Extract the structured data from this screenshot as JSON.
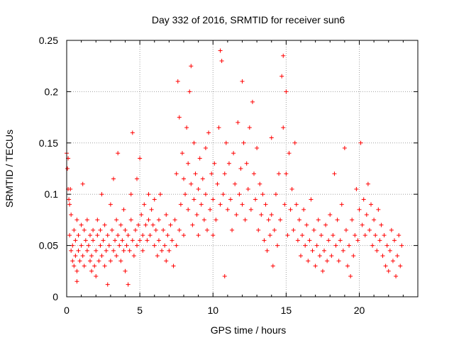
{
  "chart_data": {
    "type": "scatter",
    "title": "Day 332 of 2016, SRMTID for receiver sun6",
    "xlabel": "GPS time / hours",
    "ylabel": "SRMTID / TECUs",
    "xlim": [
      0,
      24
    ],
    "ylim": [
      0,
      0.25
    ],
    "xticks": [
      0,
      5,
      10,
      15,
      20
    ],
    "xtick_labels": [
      "0",
      "5",
      "10",
      "15",
      "20"
    ],
    "yticks": [
      0,
      0.05,
      0.1,
      0.15,
      0.2,
      0.25
    ],
    "ytick_labels": [
      "0",
      "0.05",
      "0.1",
      "0.15",
      "0.2",
      "0.25"
    ],
    "grid": true,
    "marker": "+",
    "series": [
      {
        "name": "SRMTID",
        "color": "#ff0000",
        "points": [
          [
            0.0,
            0.14
          ],
          [
            0.05,
            0.125
          ],
          [
            0.1,
            0.135
          ],
          [
            0.1,
            0.105
          ],
          [
            0.15,
            0.095
          ],
          [
            0.2,
            0.09
          ],
          [
            0.25,
            0.105
          ],
          [
            0.3,
            0.08
          ],
          [
            0.2,
            0.06
          ],
          [
            0.3,
            0.045
          ],
          [
            0.4,
            0.05
          ],
          [
            0.4,
            0.035
          ],
          [
            0.5,
            0.065
          ],
          [
            0.5,
            0.03
          ],
          [
            0.6,
            0.055
          ],
          [
            0.6,
            0.04
          ],
          [
            0.7,
            0.075
          ],
          [
            0.7,
            0.025
          ],
          [
            0.8,
            0.06
          ],
          [
            0.8,
            0.045
          ],
          [
            0.9,
            0.035
          ],
          [
            0.7,
            0.015
          ],
          [
            1.0,
            0.07
          ],
          [
            1.0,
            0.05
          ],
          [
            1.1,
            0.11
          ],
          [
            1.1,
            0.04
          ],
          [
            1.2,
            0.065
          ],
          [
            1.2,
            0.03
          ],
          [
            1.3,
            0.055
          ],
          [
            1.4,
            0.045
          ],
          [
            1.4,
            0.075
          ],
          [
            1.5,
            0.05
          ],
          [
            1.6,
            0.035
          ],
          [
            1.6,
            0.06
          ],
          [
            1.7,
            0.04
          ],
          [
            1.7,
            0.025
          ],
          [
            1.8,
            0.055
          ],
          [
            1.8,
            0.065
          ],
          [
            1.9,
            0.03
          ],
          [
            2.0,
            0.045
          ],
          [
            2.0,
            0.02
          ],
          [
            2.1,
            0.06
          ],
          [
            2.1,
            0.075
          ],
          [
            2.2,
            0.035
          ],
          [
            2.3,
            0.05
          ],
          [
            2.3,
            0.065
          ],
          [
            2.4,
            0.04
          ],
          [
            2.4,
            0.1
          ],
          [
            2.5,
            0.055
          ],
          [
            2.6,
            0.03
          ],
          [
            2.6,
            0.07
          ],
          [
            2.7,
            0.045
          ],
          [
            2.8,
            0.06
          ],
          [
            2.8,
            0.012
          ],
          [
            2.9,
            0.05
          ],
          [
            3.0,
            0.035
          ],
          [
            3.0,
            0.09
          ],
          [
            3.1,
            0.065
          ],
          [
            3.2,
            0.045
          ],
          [
            3.2,
            0.115
          ],
          [
            3.3,
            0.055
          ],
          [
            3.4,
            0.075
          ],
          [
            3.4,
            0.04
          ],
          [
            3.5,
            0.06
          ],
          [
            3.5,
            0.14
          ],
          [
            3.6,
            0.05
          ],
          [
            3.7,
            0.07
          ],
          [
            3.7,
            0.035
          ],
          [
            3.8,
            0.055
          ],
          [
            3.9,
            0.045
          ],
          [
            3.9,
            0.085
          ],
          [
            4.0,
            0.065
          ],
          [
            4.0,
            0.025
          ],
          [
            4.1,
            0.05
          ],
          [
            4.2,
            0.06
          ],
          [
            4.2,
            0.012
          ],
          [
            4.3,
            0.045
          ],
          [
            4.4,
            0.075
          ],
          [
            4.4,
            0.1
          ],
          [
            4.5,
            0.055
          ],
          [
            4.5,
            0.16
          ],
          [
            4.6,
            0.04
          ],
          [
            4.7,
            0.065
          ],
          [
            4.8,
            0.05
          ],
          [
            4.8,
            0.115
          ],
          [
            4.9,
            0.07
          ],
          [
            5.0,
            0.055
          ],
          [
            5.0,
            0.135
          ],
          [
            5.1,
            0.08
          ],
          [
            5.2,
            0.06
          ],
          [
            5.2,
            0.045
          ],
          [
            5.3,
            0.09
          ],
          [
            5.4,
            0.07
          ],
          [
            5.5,
            0.055
          ],
          [
            5.6,
            0.1
          ],
          [
            5.6,
            0.075
          ],
          [
            5.7,
            0.06
          ],
          [
            5.8,
            0.085
          ],
          [
            5.9,
            0.07
          ],
          [
            6.0,
            0.05
          ],
          [
            6.0,
            0.095
          ],
          [
            6.1,
            0.065
          ],
          [
            6.2,
            0.04
          ],
          [
            6.3,
            0.075
          ],
          [
            6.3,
            0.055
          ],
          [
            6.4,
            0.1
          ],
          [
            6.5,
            0.045
          ],
          [
            6.6,
            0.065
          ],
          [
            6.7,
            0.05
          ],
          [
            6.8,
            0.08
          ],
          [
            6.8,
            0.035
          ],
          [
            6.9,
            0.06
          ],
          [
            7.0,
            0.045
          ],
          [
            7.1,
            0.07
          ],
          [
            7.2,
            0.055
          ],
          [
            7.3,
            0.03
          ],
          [
            7.4,
            0.075
          ],
          [
            7.5,
            0.12
          ],
          [
            7.5,
            0.05
          ],
          [
            7.6,
            0.21
          ],
          [
            7.7,
            0.065
          ],
          [
            7.7,
            0.175
          ],
          [
            7.8,
            0.09
          ],
          [
            7.9,
            0.14
          ],
          [
            8.0,
            0.115
          ],
          [
            8.0,
            0.06
          ],
          [
            8.1,
            0.1
          ],
          [
            8.2,
            0.165
          ],
          [
            8.3,
            0.13
          ],
          [
            8.3,
            0.085
          ],
          [
            8.4,
            0.2
          ],
          [
            8.5,
            0.225
          ],
          [
            8.5,
            0.11
          ],
          [
            8.6,
            0.07
          ],
          [
            8.7,
            0.15
          ],
          [
            8.7,
            0.095
          ],
          [
            8.8,
            0.12
          ],
          [
            8.9,
            0.08
          ],
          [
            9.0,
            0.105
          ],
          [
            9.0,
            0.06
          ],
          [
            9.1,
            0.135
          ],
          [
            9.2,
            0.09
          ],
          [
            9.3,
            0.115
          ],
          [
            9.4,
            0.075
          ],
          [
            9.5,
            0.145
          ],
          [
            9.5,
            0.1
          ],
          [
            9.6,
            0.065
          ],
          [
            9.7,
            0.16
          ],
          [
            9.8,
            0.085
          ],
          [
            9.9,
            0.12
          ],
          [
            10.0,
            0.095
          ],
          [
            10.0,
            0.06
          ],
          [
            10.1,
            0.13
          ],
          [
            10.2,
            0.075
          ],
          [
            10.3,
            0.11
          ],
          [
            10.4,
            0.165
          ],
          [
            10.5,
            0.09
          ],
          [
            10.5,
            0.24
          ],
          [
            10.6,
            0.23
          ],
          [
            10.7,
            0.1
          ],
          [
            10.8,
            0.12
          ],
          [
            10.8,
            0.02
          ],
          [
            10.9,
            0.15
          ],
          [
            11.0,
            0.085
          ],
          [
            11.1,
            0.13
          ],
          [
            11.2,
            0.095
          ],
          [
            11.3,
            0.065
          ],
          [
            11.4,
            0.14
          ],
          [
            11.5,
            0.11
          ],
          [
            11.6,
            0.08
          ],
          [
            11.7,
            0.17
          ],
          [
            11.8,
            0.1
          ],
          [
            11.9,
            0.125
          ],
          [
            12.0,
            0.09
          ],
          [
            12.0,
            0.21
          ],
          [
            12.1,
            0.15
          ],
          [
            12.2,
            0.075
          ],
          [
            12.3,
            0.13
          ],
          [
            12.4,
            0.105
          ],
          [
            12.5,
            0.165
          ],
          [
            12.6,
            0.085
          ],
          [
            12.7,
            0.19
          ],
          [
            12.8,
            0.12
          ],
          [
            12.9,
            0.095
          ],
          [
            13.0,
            0.145
          ],
          [
            13.1,
            0.065
          ],
          [
            13.2,
            0.11
          ],
          [
            13.3,
            0.08
          ],
          [
            13.4,
            0.1
          ],
          [
            13.5,
            0.055
          ],
          [
            13.6,
            0.09
          ],
          [
            13.7,
            0.045
          ],
          [
            13.8,
            0.075
          ],
          [
            13.9,
            0.06
          ],
          [
            14.0,
            0.155
          ],
          [
            14.0,
            0.08
          ],
          [
            14.1,
            0.03
          ],
          [
            14.2,
            0.065
          ],
          [
            14.3,
            0.1
          ],
          [
            14.4,
            0.05
          ],
          [
            14.5,
            0.12
          ],
          [
            14.6,
            0.075
          ],
          [
            14.7,
            0.215
          ],
          [
            14.8,
            0.235
          ],
          [
            14.8,
            0.165
          ],
          [
            14.9,
            0.09
          ],
          [
            15.0,
            0.2
          ],
          [
            15.0,
            0.12
          ],
          [
            15.1,
            0.06
          ],
          [
            15.2,
            0.14
          ],
          [
            15.3,
            0.085
          ],
          [
            15.4,
            0.105
          ],
          [
            15.5,
            0.065
          ],
          [
            15.6,
            0.15
          ],
          [
            15.7,
            0.09
          ],
          [
            15.8,
            0.055
          ],
          [
            15.9,
            0.075
          ],
          [
            16.0,
            0.04
          ],
          [
            16.1,
            0.06
          ],
          [
            16.2,
            0.085
          ],
          [
            16.3,
            0.05
          ],
          [
            16.4,
            0.07
          ],
          [
            16.5,
            0.035
          ],
          [
            16.6,
            0.055
          ],
          [
            16.7,
            0.095
          ],
          [
            16.8,
            0.045
          ],
          [
            16.9,
            0.065
          ],
          [
            17.0,
            0.03
          ],
          [
            17.1,
            0.05
          ],
          [
            17.2,
            0.075
          ],
          [
            17.3,
            0.04
          ],
          [
            17.4,
            0.06
          ],
          [
            17.5,
            0.025
          ],
          [
            17.6,
            0.045
          ],
          [
            17.7,
            0.07
          ],
          [
            17.8,
            0.035
          ],
          [
            17.9,
            0.055
          ],
          [
            18.0,
            0.08
          ],
          [
            18.1,
            0.04
          ],
          [
            18.2,
            0.06
          ],
          [
            18.3,
            0.12
          ],
          [
            18.4,
            0.05
          ],
          [
            18.5,
            0.075
          ],
          [
            18.6,
            0.035
          ],
          [
            18.7,
            0.055
          ],
          [
            18.8,
            0.09
          ],
          [
            18.9,
            0.045
          ],
          [
            19.0,
            0.145
          ],
          [
            19.1,
            0.065
          ],
          [
            19.2,
            0.03
          ],
          [
            19.3,
            0.05
          ],
          [
            19.4,
            0.02
          ],
          [
            19.5,
            0.075
          ],
          [
            19.6,
            0.04
          ],
          [
            19.7,
            0.06
          ],
          [
            19.8,
            0.105
          ],
          [
            19.9,
            0.055
          ],
          [
            20.0,
            0.085
          ],
          [
            20.1,
            0.15
          ],
          [
            20.2,
            0.07
          ],
          [
            20.3,
            0.095
          ],
          [
            20.4,
            0.06
          ],
          [
            20.5,
            0.08
          ],
          [
            20.6,
            0.11
          ],
          [
            20.7,
            0.065
          ],
          [
            20.8,
            0.09
          ],
          [
            20.9,
            0.05
          ],
          [
            21.0,
            0.075
          ],
          [
            21.1,
            0.06
          ],
          [
            21.2,
            0.045
          ],
          [
            21.3,
            0.085
          ],
          [
            21.4,
            0.055
          ],
          [
            21.5,
            0.07
          ],
          [
            21.6,
            0.04
          ],
          [
            21.7,
            0.06
          ],
          [
            21.8,
            0.03
          ],
          [
            21.9,
            0.05
          ],
          [
            22.0,
            0.025
          ],
          [
            22.1,
            0.045
          ],
          [
            22.2,
            0.065
          ],
          [
            22.3,
            0.035
          ],
          [
            22.4,
            0.055
          ],
          [
            22.5,
            0.02
          ],
          [
            22.6,
            0.04
          ],
          [
            22.7,
            0.06
          ],
          [
            22.8,
            0.03
          ],
          [
            22.9,
            0.05
          ]
        ]
      }
    ]
  }
}
